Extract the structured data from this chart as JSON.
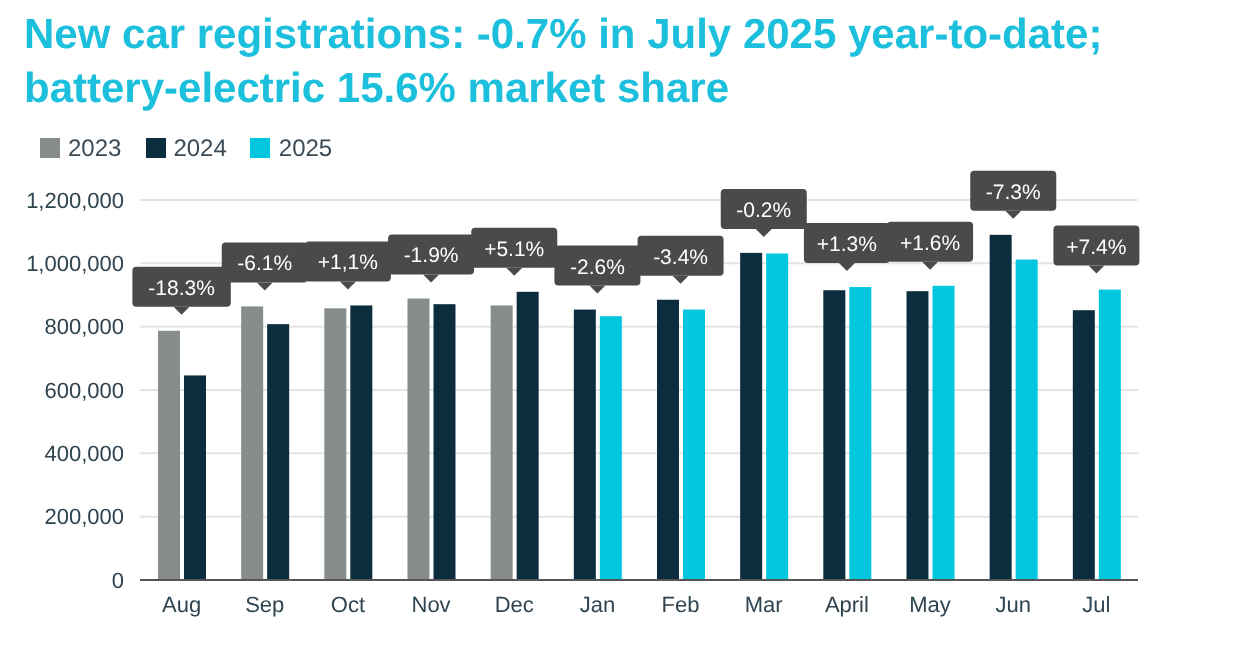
{
  "chart_data": {
    "type": "bar",
    "title": "New car registrations: -0.7% in July 2025 year-to-date; battery-electric 15.6% market share",
    "categories": [
      "Aug",
      "Sep",
      "Oct",
      "Nov",
      "Dec",
      "Jan",
      "Feb",
      "Mar",
      "April",
      "May",
      "Jun",
      "Jul"
    ],
    "series": [
      {
        "name": "2023",
        "color": "#878d8d",
        "values": [
          787000,
          864000,
          858000,
          889000,
          867000,
          null,
          null,
          null,
          null,
          null,
          null,
          null
        ]
      },
      {
        "name": "2024",
        "color": "#0b2d3e",
        "values": [
          646000,
          808000,
          867000,
          871000,
          910000,
          854000,
          885000,
          1033000,
          915000,
          912000,
          1090000,
          852000
        ]
      },
      {
        "name": "2025",
        "color": "#00c6de",
        "values": [
          null,
          null,
          null,
          null,
          null,
          833000,
          854000,
          1031000,
          925000,
          929000,
          1012000,
          917000
        ]
      }
    ],
    "ylim": [
      0,
      1200000
    ],
    "yticks": [
      0,
      {
        "value": 200000,
        "label": "200,000"
      },
      {
        "value": 400000,
        "label": "400,000"
      },
      {
        "value": 600000,
        "label": "600,000"
      },
      {
        "value": 800000,
        "label": "800,000"
      },
      {
        "value": 1000000,
        "label": "1,000,000"
      },
      {
        "value": 1200000,
        "label": "1,200,000"
      }
    ],
    "grid": "y",
    "legend": "top left",
    "annotations": [
      "-18.3%",
      "-6.1%",
      "+1,1%",
      "-1.9%",
      "+5.1%",
      "-2.6%",
      "-3.4%",
      "-0.2%",
      "+1.3%",
      "+1.6%",
      "-7.3%",
      "+7.4%"
    ]
  }
}
